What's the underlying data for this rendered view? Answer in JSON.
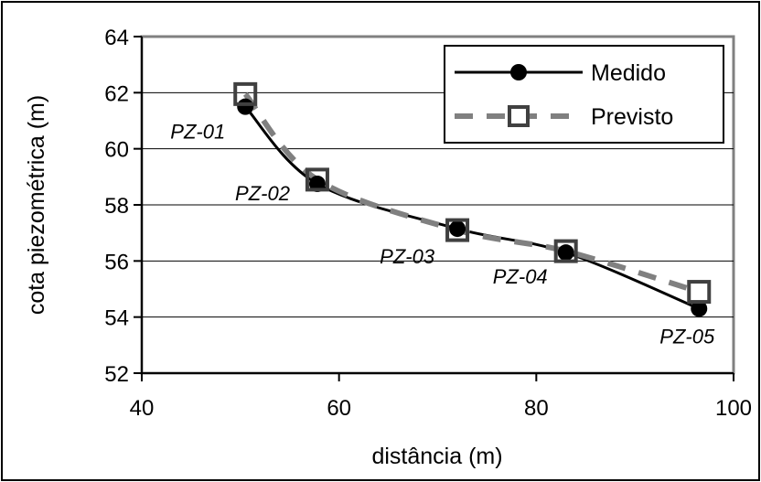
{
  "chart_data": {
    "type": "line",
    "xlabel": "distância (m)",
    "ylabel": "cota piezométrica (m)",
    "xlim": [
      40,
      100
    ],
    "ylim": [
      52,
      64
    ],
    "xticks": [
      "40",
      "60",
      "80",
      "100"
    ],
    "yticks": [
      "52",
      "54",
      "56",
      "58",
      "60",
      "62",
      "64"
    ],
    "grid": "horizontal",
    "legend_position": "top-right",
    "point_labels": [
      "PZ-01",
      "PZ-02",
      "PZ-03",
      "PZ-04",
      "PZ-05"
    ],
    "series": [
      {
        "name": "Medido",
        "style": "solid",
        "marker": "filled-circle",
        "color": "#000000",
        "x": [
          50.5,
          57.8,
          72.0,
          83.0,
          96.5
        ],
        "y": [
          61.5,
          58.75,
          57.15,
          56.3,
          54.3
        ]
      },
      {
        "name": "Previsto",
        "style": "dashed",
        "marker": "open-square",
        "color": "#808080",
        "x": [
          50.5,
          57.8,
          72.0,
          83.0,
          96.5
        ],
        "y": [
          61.95,
          58.9,
          57.1,
          56.35,
          54.9
        ]
      }
    ]
  }
}
